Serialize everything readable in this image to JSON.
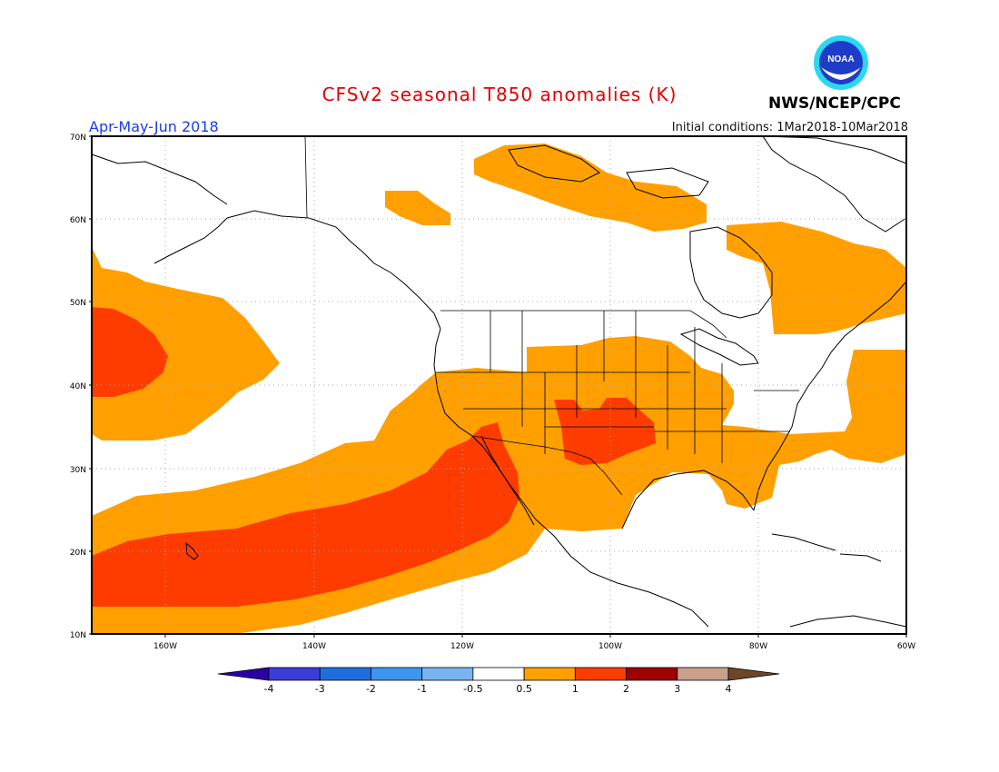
{
  "header": {
    "title": "CFSv2 seasonal T850 anomalies (K)",
    "season": "Apr-May-Jun 2018",
    "initial_conditions": "Initial conditions: 1Mar2018-10Mar2018",
    "agency": "NWS/NCEP/CPC",
    "logo_text": "NOAA"
  },
  "map": {
    "lon_range": [
      -173,
      -60
    ],
    "lat_range": [
      10,
      70
    ],
    "lat_ticks": [
      "70N",
      "60N",
      "50N",
      "40N",
      "30N",
      "20N",
      "10N"
    ],
    "lon_ticks": [
      "160W",
      "140W",
      "120W",
      "100W",
      "80W",
      "60W"
    ]
  },
  "colorbar": {
    "labels": [
      "-4",
      "-3",
      "-2",
      "-1",
      "-0.5",
      "0.5",
      "1",
      "2",
      "3",
      "4"
    ],
    "colors": [
      "#2a00a8",
      "#3c3cd8",
      "#1e6ee0",
      "#3c96f0",
      "#78b4f0",
      "#ffffff",
      "#ffa000",
      "#ff3c00",
      "#a00000",
      "#c8a08c",
      "#6e4628"
    ]
  },
  "anomaly_colors": {
    "warm": "#ffa000",
    "hot": "#ff3c00"
  }
}
